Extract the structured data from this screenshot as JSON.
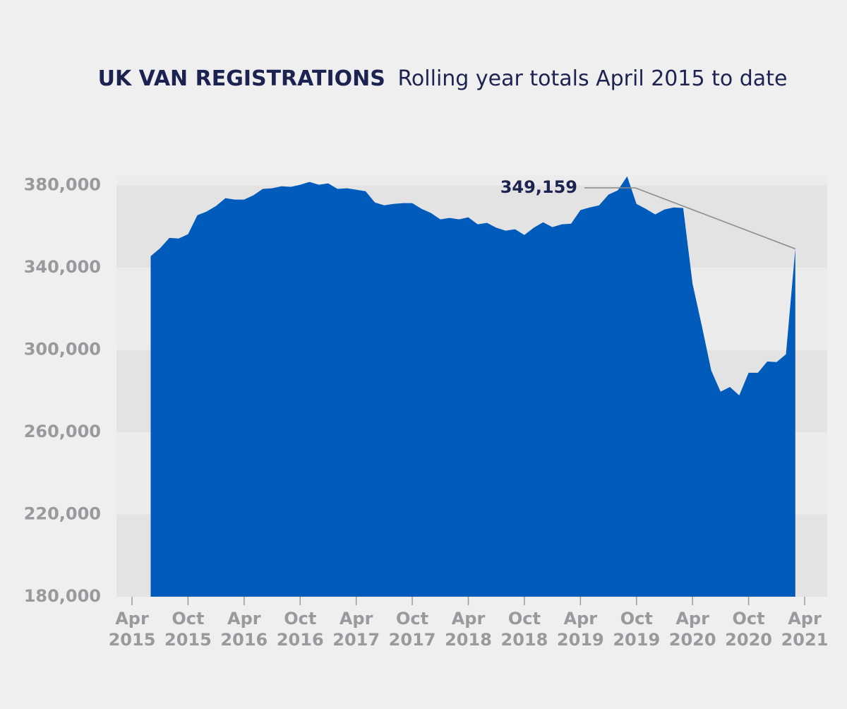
{
  "chart_data": {
    "type": "area",
    "title": "UK VAN REGISTRATIONS",
    "subtitle": "Rolling year totals April 2015 to date",
    "color": "#005bbb",
    "x": [
      "2015-06",
      "2015-07",
      "2015-08",
      "2015-09",
      "2015-10",
      "2015-11",
      "2015-12",
      "2016-01",
      "2016-02",
      "2016-03",
      "2016-04",
      "2016-05",
      "2016-06",
      "2016-07",
      "2016-08",
      "2016-09",
      "2016-10",
      "2016-11",
      "2016-12",
      "2017-01",
      "2017-02",
      "2017-03",
      "2017-04",
      "2017-05",
      "2017-06",
      "2017-07",
      "2017-08",
      "2017-09",
      "2017-10",
      "2017-11",
      "2017-12",
      "2018-01",
      "2018-02",
      "2018-03",
      "2018-04",
      "2018-05",
      "2018-06",
      "2018-07",
      "2018-08",
      "2018-09",
      "2018-10",
      "2018-11",
      "2018-12",
      "2019-01",
      "2019-02",
      "2019-03",
      "2019-04",
      "2019-05",
      "2019-06",
      "2019-07",
      "2019-08",
      "2019-09",
      "2019-10",
      "2019-11",
      "2019-12",
      "2020-01",
      "2020-02",
      "2020-03",
      "2020-04",
      "2020-05",
      "2020-06",
      "2020-07",
      "2020-08",
      "2020-09",
      "2020-10",
      "2020-11",
      "2020-12",
      "2021-01",
      "2021-02",
      "2021-03"
    ],
    "values": [
      345600,
      349400,
      354500,
      354200,
      356300,
      365500,
      367300,
      370000,
      373800,
      373100,
      373100,
      375200,
      378300,
      378600,
      379600,
      379300,
      380300,
      381700,
      380300,
      381000,
      378300,
      378600,
      377900,
      377200,
      371700,
      370300,
      371000,
      371400,
      371400,
      368600,
      366600,
      363500,
      364200,
      363500,
      364500,
      361100,
      361800,
      359400,
      358000,
      358700,
      355900,
      359400,
      362100,
      359700,
      361100,
      361400,
      368000,
      369300,
      370300,
      375500,
      377600,
      384400,
      371000,
      368600,
      365900,
      368300,
      369300,
      369000,
      332200,
      311600,
      290000,
      279700,
      282000,
      277900,
      288900,
      288900,
      294400,
      294100,
      297900,
      349159
    ],
    "value_labels": [
      null,
      null,
      null,
      null,
      null,
      null,
      null,
      null,
      null,
      null,
      null,
      null,
      null,
      null,
      null,
      null,
      null,
      null,
      null,
      null,
      null,
      null,
      null,
      null,
      null,
      null,
      null,
      null,
      null,
      null,
      null,
      null,
      null,
      null,
      null,
      null,
      null,
      null,
      null,
      null,
      null,
      null,
      null,
      null,
      null,
      null,
      null,
      null,
      null,
      null,
      null,
      null,
      null,
      null,
      null,
      null,
      null,
      null,
      null,
      null,
      null,
      null,
      null,
      null,
      null,
      null,
      null,
      null,
      null,
      "349,159"
    ],
    "xlim": [
      "2015-04",
      "2021-04"
    ],
    "xticks": [
      {
        "value": "2015-04",
        "label": [
          "Apr",
          "2015"
        ]
      },
      {
        "value": "2015-10",
        "label": [
          "Oct",
          "2015"
        ]
      },
      {
        "value": "2016-04",
        "label": [
          "Apr",
          "2016"
        ]
      },
      {
        "value": "2016-10",
        "label": [
          "Oct",
          "2016"
        ]
      },
      {
        "value": "2017-04",
        "label": [
          "Apr",
          "2017"
        ]
      },
      {
        "value": "2017-10",
        "label": [
          "Oct",
          "2017"
        ]
      },
      {
        "value": "2018-04",
        "label": [
          "Apr",
          "2018"
        ]
      },
      {
        "value": "2018-10",
        "label": [
          "Oct",
          "2018"
        ]
      },
      {
        "value": "2019-04",
        "label": [
          "Apr",
          "2019"
        ]
      },
      {
        "value": "2019-10",
        "label": [
          "Oct",
          "2019"
        ]
      },
      {
        "value": "2020-04",
        "label": [
          "Apr",
          "2020"
        ]
      },
      {
        "value": "2020-10",
        "label": [
          "Oct",
          "2020"
        ]
      },
      {
        "value": "2021-04",
        "label": [
          "Apr",
          "2021"
        ]
      }
    ],
    "ylim": [
      180000,
      385000
    ],
    "yticks": [
      {
        "value": 180000,
        "label": "180,000"
      },
      {
        "value": 220000,
        "label": "220,000"
      },
      {
        "value": 260000,
        "label": "260,000"
      },
      {
        "value": 300000,
        "label": "300,000"
      },
      {
        "value": 340000,
        "label": "340,000"
      },
      {
        "value": 380000,
        "label": "380,000"
      }
    ],
    "grid": true
  }
}
